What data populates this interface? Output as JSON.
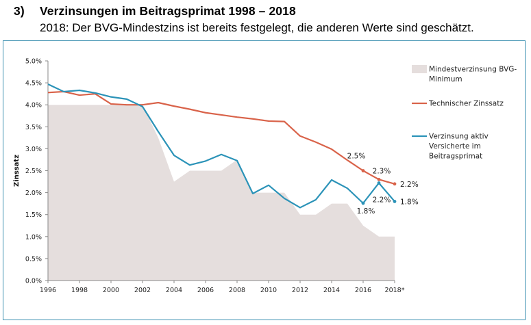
{
  "header": {
    "number": "3)",
    "title": "Verzinsungen im Beitragsprimat 1998 – 2018",
    "subtitle": "2018: Der BVG-Mindestzins ist bereits festgelegt, die anderen Werte sind geschätzt."
  },
  "chart_data": {
    "type": "line",
    "ylabel": "Zinssatz",
    "ylim": [
      0,
      5
    ],
    "xlim": [
      1996,
      2018
    ],
    "grid": false,
    "legend_position": "right",
    "y_ticks": [
      "0.0%",
      "0.5%",
      "1.0%",
      "1.5%",
      "2.0%",
      "2.5%",
      "3.0%",
      "3.5%",
      "4.0%",
      "4.5%",
      "5.0%"
    ],
    "x_ticks": [
      "1996",
      "1998",
      "2000",
      "2002",
      "2004",
      "2006",
      "2008",
      "2010",
      "2012",
      "2014",
      "2016",
      "2018*"
    ],
    "x_tick_values": [
      1996,
      1998,
      2000,
      2002,
      2004,
      2006,
      2008,
      2010,
      2012,
      2014,
      2016,
      2018
    ],
    "series": [
      {
        "name": "Mindestverzinsung BVG-Minimum",
        "kind": "area",
        "color": "#e5dedd",
        "x": [
          1996,
          2002,
          2003,
          2004,
          2005,
          2006,
          2007,
          2008,
          2009,
          2010,
          2011,
          2012,
          2013,
          2014,
          2015,
          2016,
          2017,
          2018
        ],
        "values": [
          4.0,
          4.0,
          3.25,
          2.25,
          2.5,
          2.5,
          2.5,
          2.75,
          2.0,
          2.0,
          2.0,
          1.5,
          1.5,
          1.75,
          1.75,
          1.25,
          1.0,
          1.0
        ]
      },
      {
        "name": "Technischer Zinssatz",
        "kind": "line",
        "color": "#d9634a",
        "x": [
          1996,
          1997,
          1998,
          1999,
          2000,
          2001,
          2002,
          2003,
          2004,
          2005,
          2006,
          2007,
          2008,
          2009,
          2010,
          2011,
          2012,
          2013,
          2014,
          2015,
          2016,
          2017,
          2018
        ],
        "values": [
          4.28,
          4.3,
          4.22,
          4.25,
          4.02,
          4.0,
          4.0,
          4.05,
          3.97,
          3.9,
          3.82,
          3.77,
          3.72,
          3.68,
          3.63,
          3.62,
          3.29,
          3.15,
          2.99,
          2.74,
          2.5,
          2.3,
          2.2
        ]
      },
      {
        "name": "Verzinsung aktiv Versicherte im Beitragsprimat",
        "kind": "line",
        "color": "#2b93b8",
        "x": [
          1996,
          1997,
          1998,
          1999,
          2000,
          2001,
          2002,
          2003,
          2004,
          2005,
          2006,
          2007,
          2008,
          2009,
          2010,
          2011,
          2012,
          2013,
          2014,
          2015,
          2016,
          2017,
          2018
        ],
        "values": [
          4.47,
          4.3,
          4.33,
          4.27,
          4.18,
          4.13,
          3.96,
          3.39,
          2.85,
          2.63,
          2.72,
          2.87,
          2.73,
          1.98,
          2.17,
          1.87,
          1.66,
          1.84,
          2.29,
          2.1,
          1.76,
          2.22,
          1.8
        ]
      }
    ],
    "legend": [
      {
        "label": "Mindestverzinsung BVG-Minimum",
        "color": "#e5dedd"
      },
      {
        "label": "Technischer Zinssatz",
        "color": "#d9634a"
      },
      {
        "label": "Verzinsung aktiv Versicherte im Beitragsprimat",
        "color": "#2b93b8"
      }
    ],
    "annotations": [
      {
        "text": "2.5%",
        "x": 2016,
        "y": 2.5,
        "series": "Technischer Zinssatz"
      },
      {
        "text": "2.3%",
        "x": 2017,
        "y": 2.3,
        "series": "Technischer Zinssatz"
      },
      {
        "text": "2.2%",
        "x": 2018,
        "y": 2.2,
        "series": "Technischer Zinssatz"
      },
      {
        "text": "1.8%",
        "x": 2016,
        "y": 1.76,
        "series": "Verzinsung aktiv Versicherte im Beitragsprimat"
      },
      {
        "text": "2.2%",
        "x": 2017,
        "y": 2.22,
        "series": "Verzinsung aktiv Versicherte im Beitragsprimat"
      },
      {
        "text": "1.8%",
        "x": 2018,
        "y": 1.8,
        "series": "Verzinsung aktiv Versicherte im Beitragsprimat"
      }
    ]
  }
}
